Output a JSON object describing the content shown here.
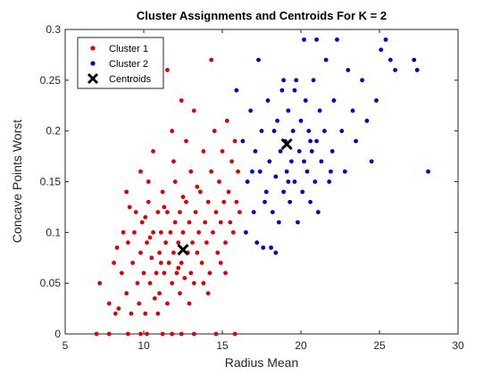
{
  "chart_data": {
    "type": "scatter",
    "title": "Cluster Assignments and Centroids For K = 2",
    "xlabel": "Radius Mean",
    "ylabel": "Concave Points Worst",
    "xlim": [
      5,
      30
    ],
    "ylim": [
      0,
      0.3
    ],
    "x_ticks": [
      5,
      10,
      15,
      20,
      25,
      30
    ],
    "y_ticks": [
      0,
      0.05,
      0.1,
      0.15,
      0.2,
      0.25,
      0.3
    ],
    "grid": false,
    "legend_position": "top-left",
    "series": [
      {
        "name": "Cluster 1",
        "color": "#dd0000",
        "marker": "dot",
        "points": [
          [
            7.0,
            0.0
          ],
          [
            7.8,
            0.0
          ],
          [
            9.0,
            0.0
          ],
          [
            9.8,
            0.0
          ],
          [
            10.2,
            0.0
          ],
          [
            11.2,
            0.0
          ],
          [
            11.8,
            0.0
          ],
          [
            12.4,
            0.0
          ],
          [
            13.2,
            0.0
          ],
          [
            14.6,
            0.0
          ],
          [
            15.8,
            0.0
          ],
          [
            7.2,
            0.05
          ],
          [
            7.8,
            0.03
          ],
          [
            8.1,
            0.07
          ],
          [
            8.4,
            0.025
          ],
          [
            8.6,
            0.06
          ],
          [
            8.7,
            0.1
          ],
          [
            8.9,
            0.04
          ],
          [
            9.0,
            0.09
          ],
          [
            9.2,
            0.02
          ],
          [
            9.3,
            0.07
          ],
          [
            9.5,
            0.12
          ],
          [
            9.6,
            0.05
          ],
          [
            9.7,
            0.03
          ],
          [
            9.8,
            0.08
          ],
          [
            9.9,
            0.11
          ],
          [
            10.0,
            0.06
          ],
          [
            10.1,
            0.02
          ],
          [
            10.2,
            0.09
          ],
          [
            10.3,
            0.13
          ],
          [
            10.4,
            0.05
          ],
          [
            10.5,
            0.075
          ],
          [
            10.6,
            0.1
          ],
          [
            10.7,
            0.035
          ],
          [
            10.8,
            0.06
          ],
          [
            10.9,
            0.12
          ],
          [
            11.0,
            0.08
          ],
          [
            11.0,
            0.04
          ],
          [
            11.1,
            0.1
          ],
          [
            11.2,
            0.14
          ],
          [
            11.3,
            0.06
          ],
          [
            11.4,
            0.09
          ],
          [
            11.5,
            0.03
          ],
          [
            11.5,
            0.12
          ],
          [
            11.6,
            0.07
          ],
          [
            11.7,
            0.1
          ],
          [
            11.8,
            0.05
          ],
          [
            11.9,
            0.08
          ],
          [
            12.0,
            0.11
          ],
          [
            12.0,
            0.15
          ],
          [
            12.1,
            0.06
          ],
          [
            12.2,
            0.09
          ],
          [
            12.3,
            0.04
          ],
          [
            12.3,
            0.12
          ],
          [
            12.4,
            0.07
          ],
          [
            12.5,
            0.1
          ],
          [
            12.6,
            0.055
          ],
          [
            12.7,
            0.13
          ],
          [
            12.8,
            0.08
          ],
          [
            12.9,
            0.11
          ],
          [
            13.0,
            0.06
          ],
          [
            13.0,
            0.16
          ],
          [
            13.1,
            0.09
          ],
          [
            13.2,
            0.05
          ],
          [
            13.3,
            0.12
          ],
          [
            13.4,
            0.08
          ],
          [
            13.5,
            0.1
          ],
          [
            13.6,
            0.14
          ],
          [
            13.7,
            0.07
          ],
          [
            13.8,
            0.18
          ],
          [
            13.9,
            0.11
          ],
          [
            14.0,
            0.09
          ],
          [
            14.1,
            0.13
          ],
          [
            14.2,
            0.06
          ],
          [
            14.3,
            0.16
          ],
          [
            14.4,
            0.1
          ],
          [
            14.5,
            0.2
          ],
          [
            14.6,
            0.12
          ],
          [
            14.7,
            0.08
          ],
          [
            14.8,
            0.15
          ],
          [
            14.9,
            0.11
          ],
          [
            15.0,
            0.18
          ],
          [
            15.1,
            0.13
          ],
          [
            15.2,
            0.09
          ],
          [
            15.3,
            0.21
          ],
          [
            15.4,
            0.14
          ],
          [
            15.5,
            0.11
          ],
          [
            15.6,
            0.17
          ],
          [
            15.7,
            0.1
          ],
          [
            15.8,
            0.19
          ],
          [
            15.9,
            0.13
          ],
          [
            16.0,
            0.16
          ],
          [
            14.3,
            0.27
          ],
          [
            11.5,
            0.26
          ],
          [
            12.4,
            0.23
          ],
          [
            13.2,
            0.22
          ],
          [
            11.8,
            0.2
          ],
          [
            10.6,
            0.18
          ],
          [
            9.8,
            0.16
          ],
          [
            8.9,
            0.14
          ],
          [
            16.1,
            0.12
          ],
          [
            15.2,
            0.06
          ],
          [
            14.1,
            0.04
          ],
          [
            12.9,
            0.03
          ],
          [
            10.9,
            0.02
          ],
          [
            8.2,
            0.02
          ],
          [
            9.4,
            0.1
          ],
          [
            10.1,
            0.115
          ],
          [
            11.3,
            0.125
          ],
          [
            12.5,
            0.135
          ],
          [
            13.4,
            0.145
          ],
          [
            11.9,
            0.17
          ],
          [
            12.7,
            0.19
          ],
          [
            10.3,
            0.15
          ],
          [
            9.1,
            0.125
          ],
          [
            8.3,
            0.085
          ],
          [
            14.9,
            0.07
          ],
          [
            13.8,
            0.05
          ],
          [
            12.2,
            0.065
          ],
          [
            11.1,
            0.07
          ],
          [
            10.4,
            0.095
          ]
        ]
      },
      {
        "name": "Cluster 2",
        "color": "#0000cc",
        "marker": "dot",
        "points": [
          [
            15.9,
            0.24
          ],
          [
            16.3,
            0.19
          ],
          [
            16.5,
            0.1
          ],
          [
            16.6,
            0.15
          ],
          [
            16.8,
            0.22
          ],
          [
            17.0,
            0.12
          ],
          [
            17.1,
            0.18
          ],
          [
            17.2,
            0.09
          ],
          [
            17.3,
            0.27
          ],
          [
            17.4,
            0.16
          ],
          [
            17.5,
            0.2
          ],
          [
            17.6,
            0.085
          ],
          [
            17.8,
            0.14
          ],
          [
            17.9,
            0.23
          ],
          [
            18.0,
            0.17
          ],
          [
            18.1,
            0.085
          ],
          [
            18.2,
            0.12
          ],
          [
            18.3,
            0.2
          ],
          [
            18.4,
            0.155
          ],
          [
            18.5,
            0.21
          ],
          [
            18.6,
            0.11
          ],
          [
            18.7,
            0.18
          ],
          [
            18.8,
            0.24
          ],
          [
            18.9,
            0.14
          ],
          [
            19.0,
            0.19
          ],
          [
            19.1,
            0.16
          ],
          [
            19.2,
            0.22
          ],
          [
            19.3,
            0.13
          ],
          [
            19.4,
            0.17
          ],
          [
            19.5,
            0.2
          ],
          [
            19.6,
            0.15
          ],
          [
            19.7,
            0.25
          ],
          [
            19.8,
            0.11
          ],
          [
            19.9,
            0.18
          ],
          [
            20.0,
            0.21
          ],
          [
            20.1,
            0.14
          ],
          [
            20.2,
            0.17
          ],
          [
            20.3,
            0.23
          ],
          [
            20.4,
            0.16
          ],
          [
            20.5,
            0.2
          ],
          [
            20.6,
            0.13
          ],
          [
            20.7,
            0.18
          ],
          [
            20.8,
            0.25
          ],
          [
            20.9,
            0.15
          ],
          [
            21.0,
            0.19
          ],
          [
            21.1,
            0.12
          ],
          [
            21.2,
            0.22
          ],
          [
            21.3,
            0.17
          ],
          [
            21.5,
            0.2
          ],
          [
            21.6,
            0.27
          ],
          [
            21.8,
            0.15
          ],
          [
            22.0,
            0.18
          ],
          [
            22.1,
            0.23
          ],
          [
            22.3,
            0.29
          ],
          [
            22.6,
            0.2
          ],
          [
            22.8,
            0.16
          ],
          [
            23.0,
            0.26
          ],
          [
            23.3,
            0.22
          ],
          [
            23.5,
            0.19
          ],
          [
            23.9,
            0.25
          ],
          [
            24.2,
            0.21
          ],
          [
            24.5,
            0.17
          ],
          [
            24.8,
            0.23
          ],
          [
            25.1,
            0.28
          ],
          [
            25.4,
            0.29
          ],
          [
            25.7,
            0.27
          ],
          [
            26.0,
            0.26
          ],
          [
            27.2,
            0.27
          ],
          [
            27.4,
            0.26
          ],
          [
            28.1,
            0.16
          ],
          [
            21.0,
            0.29
          ],
          [
            20.2,
            0.29
          ],
          [
            18.4,
            0.08
          ],
          [
            17.7,
            0.13
          ],
          [
            19.6,
            0.24
          ],
          [
            16.9,
            0.16
          ],
          [
            18.9,
            0.25
          ],
          [
            20.6,
            0.19
          ],
          [
            21.9,
            0.16
          ],
          [
            19.2,
            0.15
          ]
        ]
      }
    ],
    "centroids": {
      "name": "Centroids",
      "color": "#000000",
      "marker": "x",
      "points": [
        [
          12.5,
          0.083
        ],
        [
          19.1,
          0.187
        ]
      ]
    }
  }
}
